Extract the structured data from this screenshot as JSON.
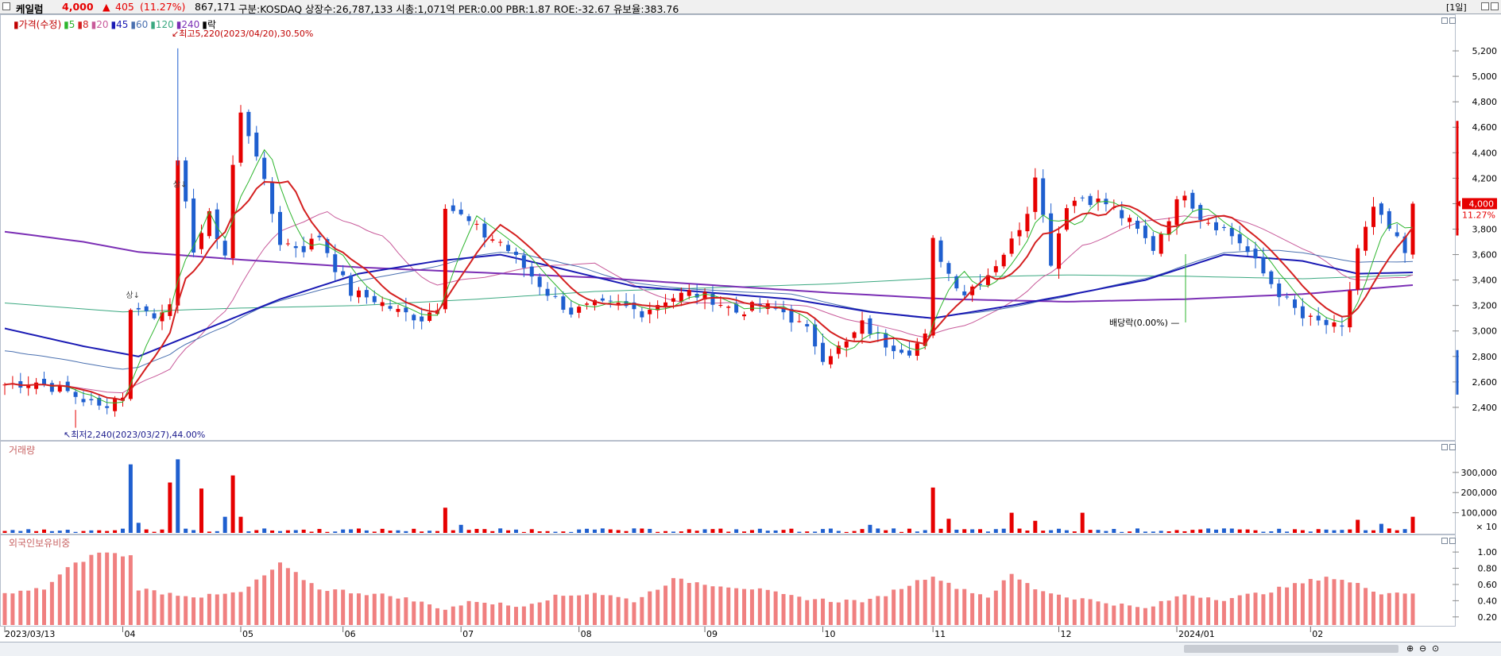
{
  "header": {
    "name": "케일럼",
    "price": "4,000",
    "arrow": "▲",
    "change": "405",
    "rate": "(11.27%)",
    "volume": "867,171",
    "info": "구분:KOSDAQ 상장수:26,787,133 시총:1,071억 PER:0.00 PBR:1.87 ROE:-32.67 유보율:383.76",
    "period": "[1일]"
  },
  "colors": {
    "up": "#e60000",
    "down": "#1f5fcf",
    "ma5": "#2db52d",
    "ma8": "#d42020",
    "ma20": "#c85a9a",
    "ma45": "#1a1ab4",
    "ma60": "#4a70b0",
    "ma120": "#3aa880",
    "ma240": "#7b2fb5",
    "foreign": "#f08080"
  },
  "price_pane": {
    "legend": [
      {
        "text": "가격(수정)",
        "color": "#c00000"
      },
      {
        "text": "5",
        "color": "#2db52d"
      },
      {
        "text": "8",
        "color": "#d42020"
      },
      {
        "text": "20",
        "color": "#c85a9a"
      },
      {
        "text": "45",
        "color": "#1a1ab4"
      },
      {
        "text": "60",
        "color": "#4a70b0"
      },
      {
        "text": "120",
        "color": "#3aa880"
      },
      {
        "text": "240",
        "color": "#7b2fb5"
      },
      {
        "text": "락",
        "color": "#000000"
      }
    ],
    "high_note": "최고5,220(2023/04/20),30.50%",
    "low_note": "최저2,240(2023/03/27),44.00%",
    "dividend_note": "배당락(0.00%)",
    "sang_mark": "상",
    "current_label": "4,000",
    "current_rate_label": "11.27%"
  },
  "volume_pane": {
    "title": "거래량",
    "unit": "× 10"
  },
  "foreign_pane": {
    "title": "외국인보유비중"
  },
  "chart_data": [
    {
      "type": "candlestick",
      "title": "가격(수정)",
      "ylim": [
        2200,
        5350
      ],
      "y_ticks": [
        2400,
        2600,
        2800,
        3000,
        3200,
        3400,
        3600,
        3800,
        4000,
        4200,
        4400,
        4600,
        4800,
        5000,
        5200
      ],
      "y_tick_labels": [
        "2,400",
        "2,600",
        "2,800",
        "3,000",
        "3,200",
        "3,400",
        "3,600",
        "3,800",
        "4,000",
        "4,200",
        "4,400",
        "4,600",
        "4,800",
        "5,000",
        "5,200"
      ],
      "x_labels": [
        "2023/03/13",
        "04",
        "05",
        "06",
        "07",
        "08",
        "09",
        "10",
        "11",
        "12",
        "2024/01",
        "02"
      ],
      "x_label_index": [
        0,
        15,
        30,
        43,
        58,
        73,
        89,
        104,
        118,
        134,
        149,
        166
      ],
      "num_candles": 180,
      "close_path": [
        [
          0,
          2580
        ],
        [
          4,
          2600
        ],
        [
          8,
          2520
        ],
        [
          12,
          2400
        ],
        [
          15,
          2500
        ],
        [
          16,
          3150
        ],
        [
          17,
          3200
        ],
        [
          19,
          3100
        ],
        [
          21,
          3250
        ],
        [
          22,
          4300
        ],
        [
          24,
          3650
        ],
        [
          26,
          3900
        ],
        [
          28,
          3600
        ],
        [
          29,
          4300
        ],
        [
          30,
          4700
        ],
        [
          32,
          4400
        ],
        [
          33,
          4150
        ],
        [
          35,
          3700
        ],
        [
          38,
          3650
        ],
        [
          40,
          3750
        ],
        [
          42,
          3500
        ],
        [
          44,
          3300
        ],
        [
          47,
          3250
        ],
        [
          50,
          3150
        ],
        [
          53,
          3100
        ],
        [
          55,
          3200
        ],
        [
          56,
          4000
        ],
        [
          58,
          3900
        ],
        [
          61,
          3750
        ],
        [
          63,
          3700
        ],
        [
          66,
          3500
        ],
        [
          69,
          3300
        ],
        [
          72,
          3150
        ],
        [
          75,
          3200
        ],
        [
          78,
          3200
        ],
        [
          81,
          3150
        ],
        [
          84,
          3250
        ],
        [
          87,
          3300
        ],
        [
          90,
          3250
        ],
        [
          93,
          3150
        ],
        [
          96,
          3200
        ],
        [
          99,
          3150
        ],
        [
          102,
          3000
        ],
        [
          104,
          2800
        ],
        [
          107,
          2900
        ],
        [
          109,
          3050
        ],
        [
          112,
          2900
        ],
        [
          115,
          2850
        ],
        [
          117,
          2950
        ],
        [
          118,
          3700
        ],
        [
          120,
          3450
        ],
        [
          122,
          3300
        ],
        [
          125,
          3450
        ],
        [
          128,
          3700
        ],
        [
          130,
          3950
        ],
        [
          131,
          4250
        ],
        [
          133,
          3550
        ],
        [
          135,
          4000
        ],
        [
          137,
          4050
        ],
        [
          140,
          4000
        ],
        [
          143,
          3850
        ],
        [
          146,
          3650
        ],
        [
          148,
          3900
        ],
        [
          150,
          4100
        ],
        [
          152,
          3900
        ],
        [
          155,
          3800
        ],
        [
          157,
          3700
        ],
        [
          160,
          3450
        ],
        [
          162,
          3300
        ],
        [
          165,
          3100
        ],
        [
          168,
          3050
        ],
        [
          170,
          3000
        ],
        [
          172,
          3650
        ],
        [
          174,
          3950
        ],
        [
          176,
          3800
        ],
        [
          178,
          3600
        ],
        [
          179,
          4000
        ]
      ],
      "moving_averages": [
        {
          "name": "5",
          "color": "#2db52d"
        },
        {
          "name": "8",
          "color": "#d42020"
        },
        {
          "name": "20",
          "color": "#c85a9a"
        },
        {
          "name": "45",
          "color": "#1a1ab4"
        },
        {
          "name": "60",
          "color": "#4a70b0"
        },
        {
          "name": "120",
          "color": "#3aa880"
        },
        {
          "name": "240",
          "color": "#7b2fb5"
        }
      ],
      "ma240_path": [
        [
          0,
          3780
        ],
        [
          10,
          3700
        ],
        [
          17,
          3620
        ],
        [
          30,
          3560
        ],
        [
          45,
          3500
        ],
        [
          60,
          3460
        ],
        [
          75,
          3420
        ],
        [
          90,
          3360
        ],
        [
          105,
          3300
        ],
        [
          120,
          3250
        ],
        [
          135,
          3230
        ],
        [
          150,
          3250
        ],
        [
          165,
          3290
        ],
        [
          179,
          3360
        ]
      ],
      "ma120_path": [
        [
          0,
          3220
        ],
        [
          15,
          3150
        ],
        [
          30,
          3180
        ],
        [
          45,
          3200
        ],
        [
          60,
          3250
        ],
        [
          75,
          3310
        ],
        [
          90,
          3340
        ],
        [
          105,
          3370
        ],
        [
          120,
          3420
        ],
        [
          135,
          3440
        ],
        [
          150,
          3430
        ],
        [
          165,
          3410
        ],
        [
          179,
          3440
        ]
      ],
      "ma60_path": [
        [
          0,
          3020
        ],
        [
          10,
          2880
        ],
        [
          17,
          2800
        ],
        [
          25,
          3000
        ],
        [
          35,
          3250
        ],
        [
          45,
          3450
        ],
        [
          55,
          3550
        ],
        [
          63,
          3600
        ],
        [
          70,
          3500
        ],
        [
          80,
          3350
        ],
        [
          90,
          3300
        ],
        [
          100,
          3250
        ],
        [
          110,
          3150
        ],
        [
          118,
          3100
        ],
        [
          128,
          3200
        ],
        [
          135,
          3280
        ],
        [
          145,
          3400
        ],
        [
          155,
          3600
        ],
        [
          165,
          3550
        ],
        [
          172,
          3450
        ],
        [
          179,
          3460
        ]
      ]
    },
    {
      "type": "bar",
      "title": "거래량",
      "unit": "× 10",
      "ylim": [
        0,
        390000
      ],
      "y_ticks": [
        100000,
        200000,
        300000
      ],
      "y_tick_labels": [
        "100,000",
        "200,000",
        "300,000"
      ],
      "spikes": [
        [
          16,
          340000,
          "down"
        ],
        [
          17,
          50000,
          "down"
        ],
        [
          21,
          250000,
          "up"
        ],
        [
          22,
          365000,
          "down"
        ],
        [
          25,
          220000,
          "up"
        ],
        [
          28,
          80000,
          "down"
        ],
        [
          29,
          285000,
          "up"
        ],
        [
          30,
          80000,
          "up"
        ],
        [
          56,
          125000,
          "up"
        ],
        [
          58,
          40000,
          "down"
        ],
        [
          110,
          40000,
          "down"
        ],
        [
          118,
          225000,
          "up"
        ],
        [
          120,
          70000,
          "up"
        ],
        [
          128,
          100000,
          "up"
        ],
        [
          131,
          60000,
          "up"
        ],
        [
          137,
          100000,
          "up"
        ],
        [
          172,
          65000,
          "up"
        ],
        [
          175,
          45000,
          "down"
        ],
        [
          179,
          80000,
          "up"
        ]
      ],
      "base_level": 15000
    },
    {
      "type": "bar",
      "title": "외국인보유비중",
      "ylim": [
        0.1,
        1.05
      ],
      "y_ticks": [
        0.2,
        0.4,
        0.6,
        0.8,
        1.0
      ],
      "y_tick_labels": [
        "0.20",
        "0.40",
        "0.60",
        "0.80",
        "1.00"
      ],
      "level_path": [
        [
          0,
          0.48
        ],
        [
          5,
          0.55
        ],
        [
          8,
          0.8
        ],
        [
          12,
          1.0
        ],
        [
          16,
          0.95
        ],
        [
          17,
          0.55
        ],
        [
          20,
          0.5
        ],
        [
          25,
          0.45
        ],
        [
          30,
          0.5
        ],
        [
          35,
          0.85
        ],
        [
          40,
          0.55
        ],
        [
          50,
          0.45
        ],
        [
          56,
          0.3
        ],
        [
          60,
          0.4
        ],
        [
          65,
          0.33
        ],
        [
          70,
          0.45
        ],
        [
          75,
          0.5
        ],
        [
          80,
          0.4
        ],
        [
          85,
          0.66
        ],
        [
          90,
          0.6
        ],
        [
          95,
          0.55
        ],
        [
          100,
          0.45
        ],
        [
          105,
          0.4
        ],
        [
          110,
          0.4
        ],
        [
          118,
          0.72
        ],
        [
          120,
          0.6
        ],
        [
          125,
          0.45
        ],
        [
          128,
          0.72
        ],
        [
          131,
          0.55
        ],
        [
          135,
          0.45
        ],
        [
          140,
          0.38
        ],
        [
          145,
          0.3
        ],
        [
          150,
          0.48
        ],
        [
          155,
          0.42
        ],
        [
          160,
          0.5
        ],
        [
          165,
          0.62
        ],
        [
          168,
          0.7
        ],
        [
          172,
          0.6
        ],
        [
          175,
          0.5
        ],
        [
          179,
          0.5
        ]
      ]
    }
  ]
}
